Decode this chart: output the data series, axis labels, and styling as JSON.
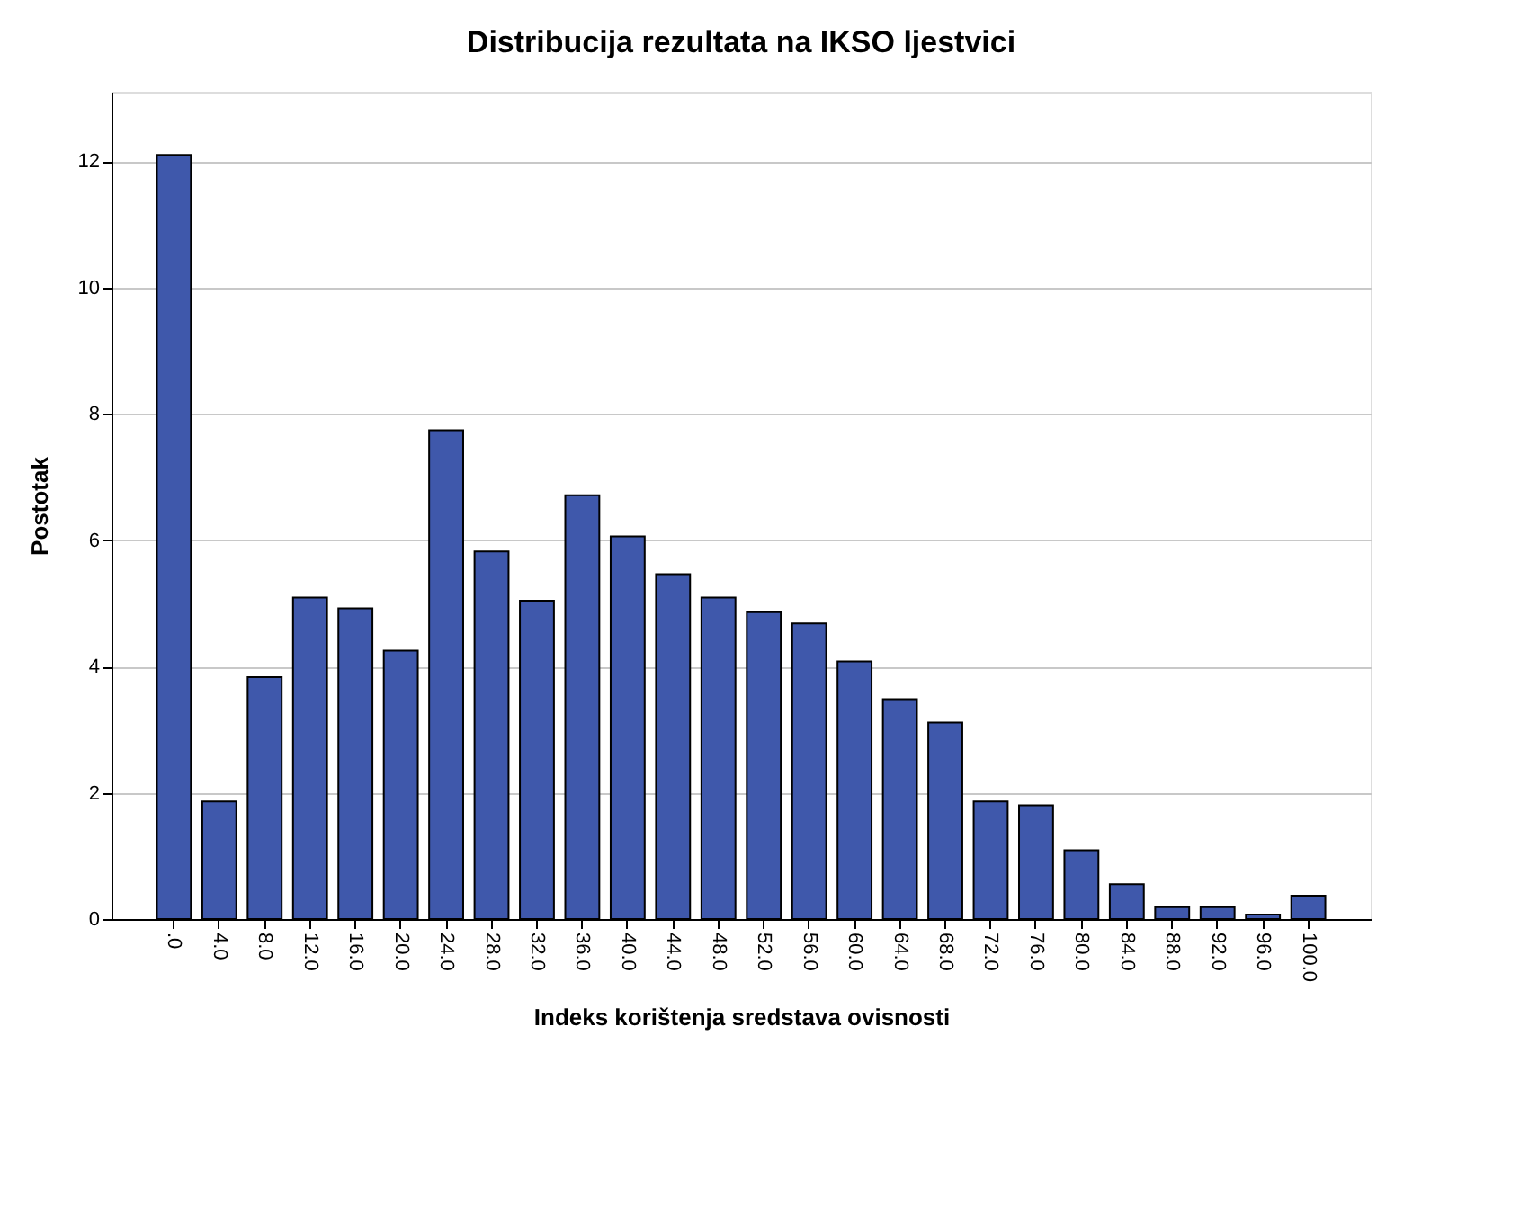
{
  "chart_data": {
    "type": "bar",
    "title": "Distribucija rezultata na IKSO ljestvici",
    "xlabel": "Indeks korištenja sredstava ovisnosti",
    "ylabel": "Postotak",
    "categories": [
      ".0",
      "4.0",
      "8.0",
      "12.0",
      "16.0",
      "20.0",
      "24.0",
      "28.0",
      "32.0",
      "36.0",
      "40.0",
      "44.0",
      "48.0",
      "52.0",
      "56.0",
      "60.0",
      "64.0",
      "68.0",
      "72.0",
      "76.0",
      "80.0",
      "84.0",
      "88.0",
      "92.0",
      "96.0",
      "100.0"
    ],
    "values": [
      12.1,
      1.86,
      3.83,
      5.09,
      4.92,
      4.25,
      7.74,
      5.82,
      5.04,
      6.71,
      6.06,
      5.46,
      5.09,
      4.86,
      4.68,
      4.08,
      3.48,
      3.11,
      1.86,
      1.8,
      1.09,
      0.55,
      0.19,
      0.19,
      0.07,
      0.37
    ],
    "color": "#3f58ab",
    "ylim": [
      0,
      13.1
    ],
    "yticks": [
      0,
      2,
      4,
      6,
      8,
      10,
      12
    ],
    "grid": "y"
  }
}
